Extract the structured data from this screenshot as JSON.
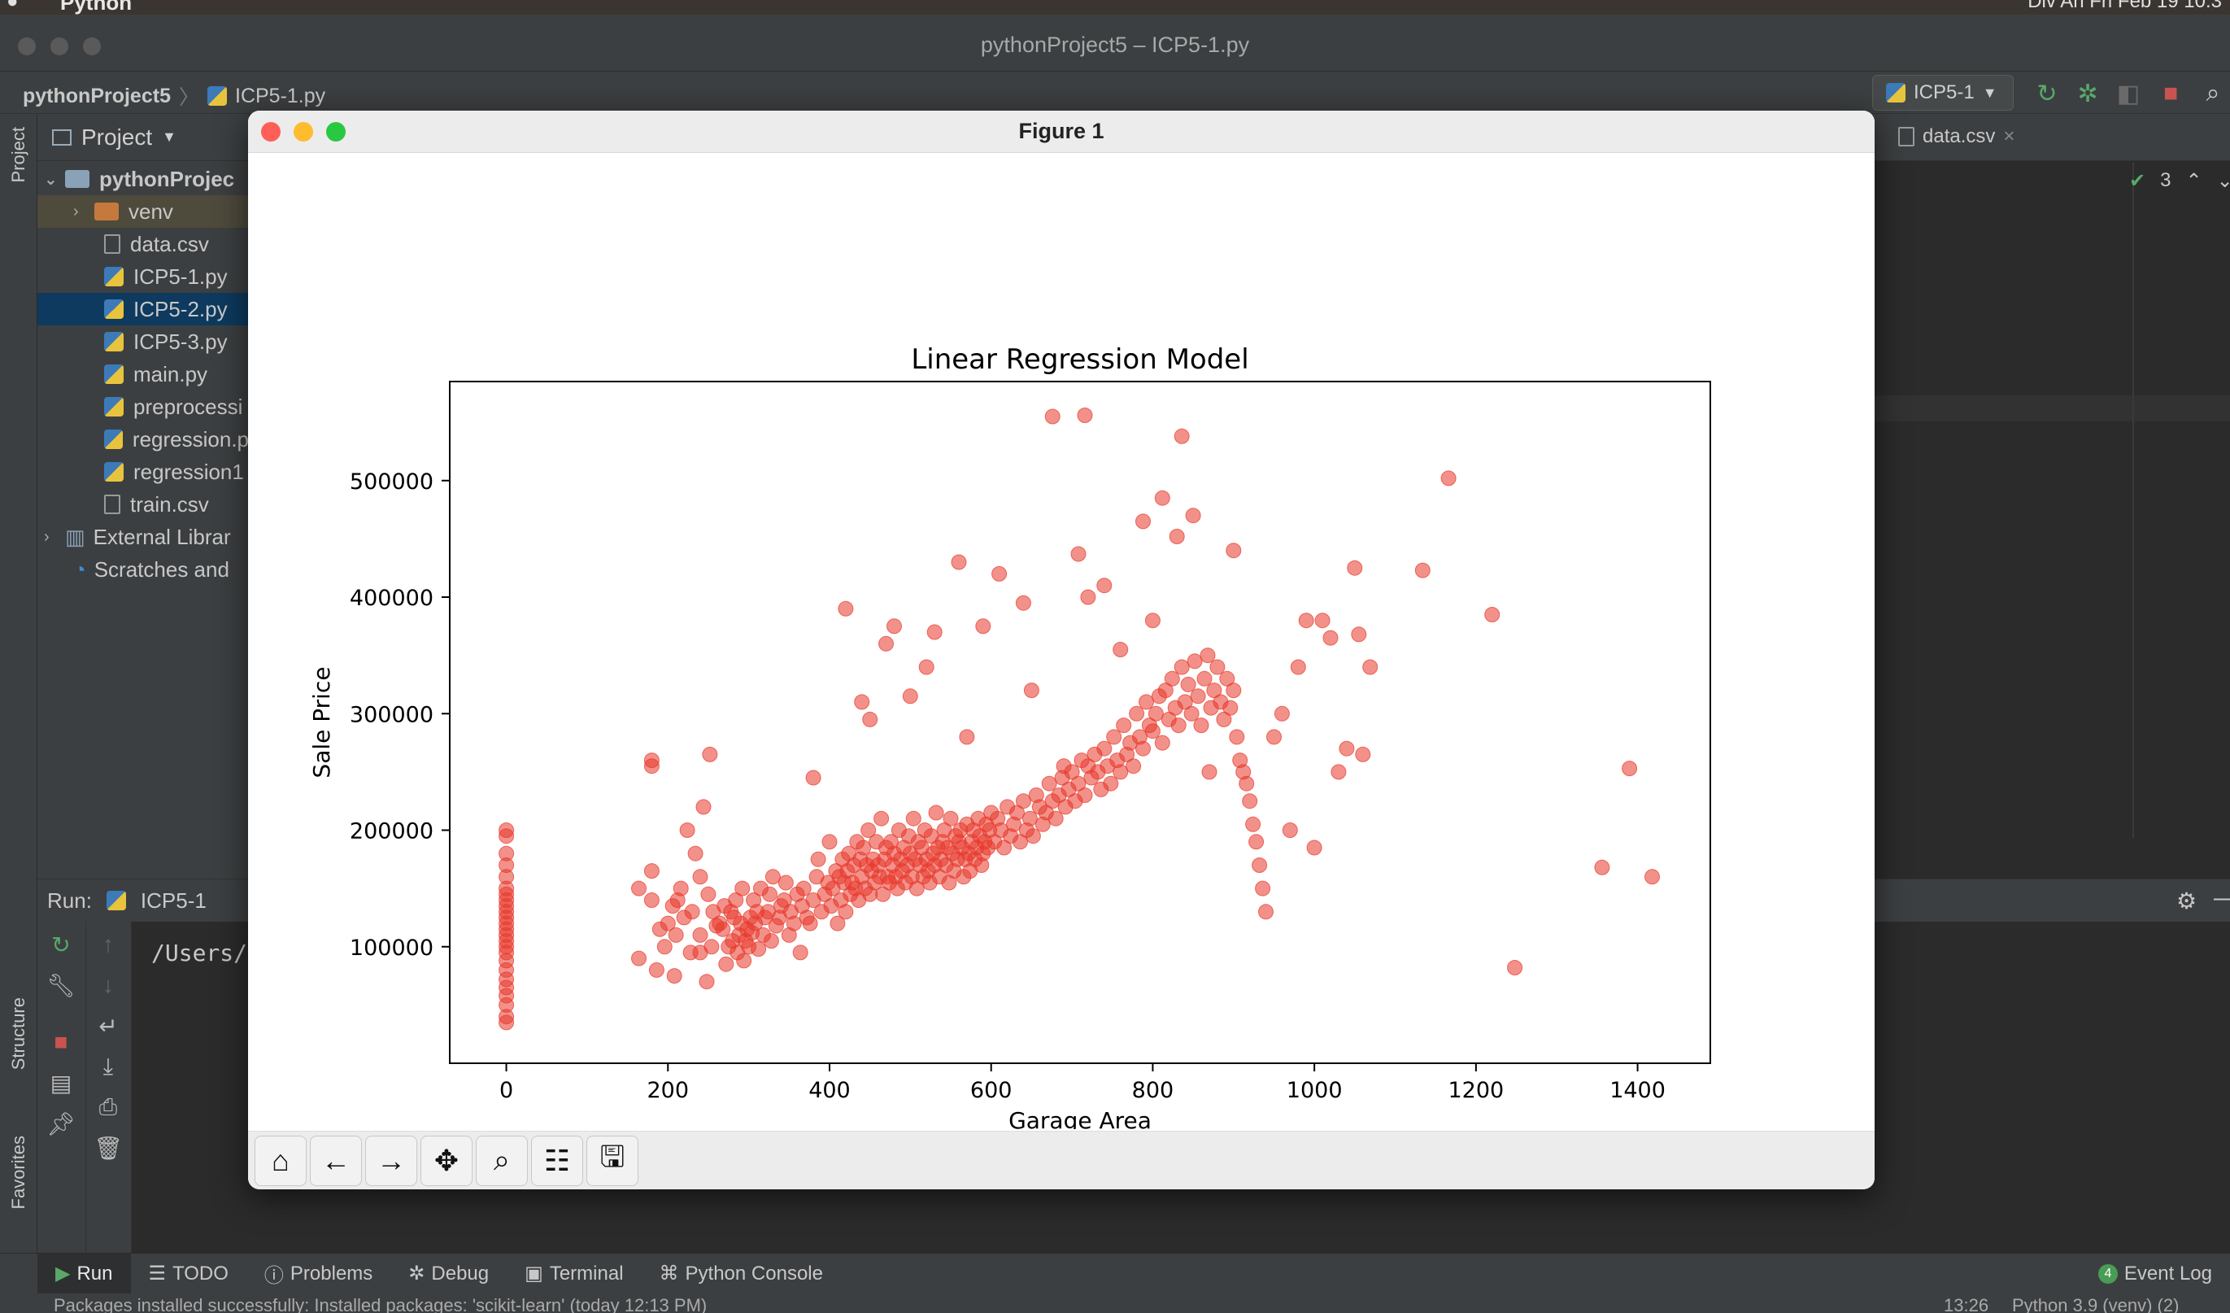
{
  "menubar": {
    "app_name": "Python",
    "right_text": "Div An  Fri Feb 19  10:3"
  },
  "window": {
    "title": "pythonProject5 – ICP5-1.py"
  },
  "breadcrumb": {
    "project": "pythonProject5",
    "file": "ICP5-1.py"
  },
  "run_config": {
    "label": "ICP5-1"
  },
  "project_panel": {
    "header": "Project",
    "items": [
      {
        "label": "pythonProjec",
        "kind": "root"
      },
      {
        "label": "venv",
        "kind": "folder"
      },
      {
        "label": "data.csv",
        "kind": "file"
      },
      {
        "label": "ICP5-1.py",
        "kind": "py"
      },
      {
        "label": "ICP5-2.py",
        "kind": "py"
      },
      {
        "label": "ICP5-3.py",
        "kind": "py"
      },
      {
        "label": "main.py",
        "kind": "py"
      },
      {
        "label": "preprocessi",
        "kind": "py"
      },
      {
        "label": "regression.p",
        "kind": "py"
      },
      {
        "label": "regression1",
        "kind": "py"
      },
      {
        "label": "train.csv",
        "kind": "file"
      },
      {
        "label": "External Librar",
        "kind": "lib"
      },
      {
        "label": "Scratches and",
        "kind": "scratch"
      }
    ]
  },
  "editor": {
    "tab_label": "data.csv",
    "inspection_count": "3"
  },
  "side_labels": {
    "project": "Project",
    "structure": "Structure",
    "favorites": "Favorites"
  },
  "run_panel": {
    "label": "Run:",
    "tab": "ICP5-1",
    "console_line": "/Users/d"
  },
  "bottom_tabs": [
    {
      "label": "Run",
      "active": true
    },
    {
      "label": "TODO"
    },
    {
      "label": "Problems"
    },
    {
      "label": "Debug"
    },
    {
      "label": "Terminal"
    },
    {
      "label": "Python Console"
    }
  ],
  "event_log": {
    "label": "Event Log",
    "count": "4"
  },
  "status_bar": {
    "message": "Packages installed successfully: Installed packages: 'scikit-learn' (today 12:13 PM)",
    "position": "13:26",
    "interpreter": "Python 3.9 (venv) (2)"
  },
  "figure": {
    "window_title": "Figure 1"
  },
  "toolbar_icons": [
    "home-icon",
    "back-arrow-icon",
    "forward-arrow-icon",
    "pan-icon",
    "zoom-icon",
    "configure-subplots-icon",
    "save-icon"
  ],
  "colors": {
    "point": "#e8372a",
    "ide_bg": "#2b2b2b",
    "ide_panel": "#3c3f41",
    "selection": "#0d3a5e"
  },
  "chart_data": {
    "type": "scatter",
    "title": "Linear Regression Model",
    "xlabel": "Garage Area",
    "ylabel": "Sale Price",
    "xlim": [
      -70,
      1490
    ],
    "ylim": [
      0,
      585000
    ],
    "xticks": [
      0,
      200,
      400,
      600,
      800,
      1000,
      1200,
      1400
    ],
    "yticks": [
      100000,
      200000,
      300000,
      400000,
      500000
    ],
    "grid": false,
    "series": [
      {
        "values_note": "",
        "x": [
          0,
          0,
          0,
          0,
          0,
          0,
          0,
          0,
          0,
          0,
          0,
          0,
          0,
          0,
          0,
          0,
          0,
          0,
          0,
          0,
          0,
          0,
          0,
          0,
          0,
          164,
          164,
          180,
          180,
          180,
          180,
          186,
          190,
          196,
          200,
          206,
          208,
          210,
          212,
          216,
          220,
          224,
          228,
          230,
          234,
          240,
          240,
          240,
          244,
          248,
          250,
          252,
          254,
          256,
          260,
          264,
          268,
          270,
          272,
          275,
          278,
          280,
          282,
          284,
          286,
          288,
          290,
          292,
          294,
          296,
          298,
          300,
          302,
          304,
          306,
          308,
          310,
          312,
          315,
          318,
          320,
          324,
          326,
          328,
          330,
          334,
          338,
          340,
          344,
          346,
          350,
          352,
          356,
          360,
          364,
          366,
          368,
          372,
          376,
          380,
          384,
          386,
          390,
          394,
          398,
          400,
          402,
          404,
          408,
          410,
          412,
          414,
          416,
          418,
          420,
          422,
          424,
          426,
          428,
          430,
          432,
          434,
          436,
          438,
          440,
          442,
          444,
          446,
          448,
          450,
          452,
          454,
          456,
          458,
          460,
          462,
          464,
          466,
          468,
          470,
          472,
          474,
          476,
          478,
          480,
          482,
          484,
          486,
          488,
          490,
          492,
          494,
          496,
          498,
          500,
          502,
          504,
          506,
          508,
          510,
          512,
          514,
          516,
          518,
          520,
          522,
          524,
          526,
          528,
          530,
          532,
          534,
          536,
          538,
          540,
          542,
          544,
          546,
          548,
          550,
          552,
          554,
          556,
          558,
          560,
          562,
          564,
          566,
          568,
          570,
          572,
          574,
          576,
          578,
          580,
          582,
          584,
          586,
          588,
          590,
          592,
          594,
          596,
          598,
          600,
          604,
          608,
          612,
          616,
          620,
          624,
          628,
          632,
          636,
          640,
          644,
          648,
          652,
          656,
          660,
          664,
          668,
          672,
          676,
          680,
          684,
          688,
          692,
          696,
          700,
          704,
          708,
          712,
          716,
          720,
          724,
          728,
          732,
          736,
          740,
          744,
          748,
          752,
          756,
          760,
          764,
          768,
          772,
          776,
          780,
          784,
          788,
          792,
          796,
          800,
          804,
          808,
          812,
          816,
          820,
          824,
          828,
          832,
          836,
          840,
          844,
          848,
          852,
          856,
          860,
          864,
          868,
          872,
          876,
          880,
          884,
          888,
          892,
          896,
          900,
          904,
          908,
          912,
          916,
          920,
          924,
          928,
          932,
          936,
          940,
          950,
          960,
          970,
          980,
          990,
          1000,
          1010,
          1020,
          1030,
          1040,
          1050,
          1055,
          1060,
          1069,
          1134,
          1166,
          1220,
          1248,
          1356,
          1390,
          1418,
          676,
          716,
          836,
          812,
          788,
          740,
          708,
          640,
          560,
          470,
          440,
          420,
          380,
          520,
          900,
          870,
          830,
          850,
          800,
          760,
          720,
          610,
          590,
          480,
          450,
          500,
          530,
          570,
          650,
          690
        ],
        "y": [
          35000,
          40000,
          50000,
          58000,
          65000,
          72000,
          80000,
          88000,
          95000,
          100000,
          105000,
          110000,
          115000,
          120000,
          125000,
          130000,
          135000,
          140000,
          145000,
          150000,
          160000,
          170000,
          180000,
          195000,
          200000,
          90000,
          150000,
          140000,
          165000,
          255000,
          260000,
          80000,
          115000,
          100000,
          120000,
          135000,
          75000,
          110000,
          140000,
          150000,
          125000,
          200000,
          95000,
          130000,
          180000,
          95000,
          160000,
          110000,
          220000,
          70000,
          145000,
          265000,
          100000,
          130000,
          118000,
          120000,
          115000,
          135000,
          85000,
          100000,
          130000,
          105000,
          125000,
          140000,
          95000,
          110000,
          120000,
          150000,
          88000,
          105000,
          115000,
          100000,
          125000,
          112000,
          140000,
          120000,
          130000,
          98000,
          150000,
          110000,
          125000,
          130000,
          145000,
          105000,
          160000,
          118000,
          125000,
          135000,
          140000,
          155000,
          110000,
          130000,
          120000,
          145000,
          95000,
          135000,
          150000,
          125000,
          120000,
          140000,
          160000,
          175000,
          130000,
          145000,
          155000,
          190000,
          135000,
          150000,
          165000,
          120000,
          160000,
          140000,
          175000,
          155000,
          130000,
          165000,
          180000,
          145000,
          155000,
          170000,
          150000,
          190000,
          140000,
          175000,
          160000,
          185000,
          150000,
          170000,
          200000,
          145000,
          165000,
          175000,
          155000,
          190000,
          170000,
          160000,
          210000,
          145000,
          175000,
          185000,
          160000,
          155000,
          190000,
          170000,
          180000,
          160000,
          150000,
          200000,
          175000,
          165000,
          185000,
          155000,
          170000,
          195000,
          180000,
          160000,
          210000,
          175000,
          150000,
          190000,
          170000,
          185000,
          160000,
          200000,
          175000,
          165000,
          155000,
          195000,
          180000,
          170000,
          215000,
          185000,
          160000,
          175000,
          190000,
          200000,
          170000,
          185000,
          155000,
          210000,
          180000,
          165000,
          195000,
          175000,
          190000,
          200000,
          185000,
          160000,
          175000,
          205000,
          180000,
          165000,
          190000,
          200000,
          175000,
          185000,
          210000,
          195000,
          170000,
          180000,
          190000,
          205000,
          185000,
          200000,
          215000,
          190000,
          210000,
          200000,
          185000,
          220000,
          195000,
          205000,
          215000,
          190000,
          225000,
          200000,
          210000,
          195000,
          230000,
          220000,
          205000,
          215000,
          240000,
          225000,
          210000,
          230000,
          245000,
          220000,
          235000,
          250000,
          225000,
          240000,
          260000,
          230000,
          255000,
          245000,
          265000,
          250000,
          235000,
          270000,
          255000,
          240000,
          280000,
          260000,
          250000,
          290000,
          265000,
          275000,
          255000,
          300000,
          280000,
          270000,
          310000,
          290000,
          285000,
          300000,
          315000,
          275000,
          320000,
          295000,
          330000,
          305000,
          290000,
          340000,
          310000,
          325000,
          300000,
          345000,
          315000,
          290000,
          330000,
          350000,
          305000,
          320000,
          340000,
          310000,
          295000,
          330000,
          305000,
          320000,
          280000,
          260000,
          250000,
          240000,
          225000,
          205000,
          190000,
          170000,
          150000,
          130000,
          280000,
          300000,
          200000,
          340000,
          380000,
          185000,
          380000,
          365000,
          250000,
          270000,
          425000,
          368000,
          265000,
          340000,
          423000,
          502000,
          385000,
          82000,
          168000,
          253000,
          160000,
          555000,
          556000,
          538000,
          485000,
          465000,
          410000,
          437000,
          395000,
          430000,
          360000,
          310000,
          390000,
          245000,
          340000,
          440000,
          250000,
          452000,
          470000,
          380000,
          355000,
          400000,
          420000,
          375000,
          375000,
          295000,
          315000,
          370000,
          280000,
          320000,
          255000
        ]
      }
    ]
  }
}
